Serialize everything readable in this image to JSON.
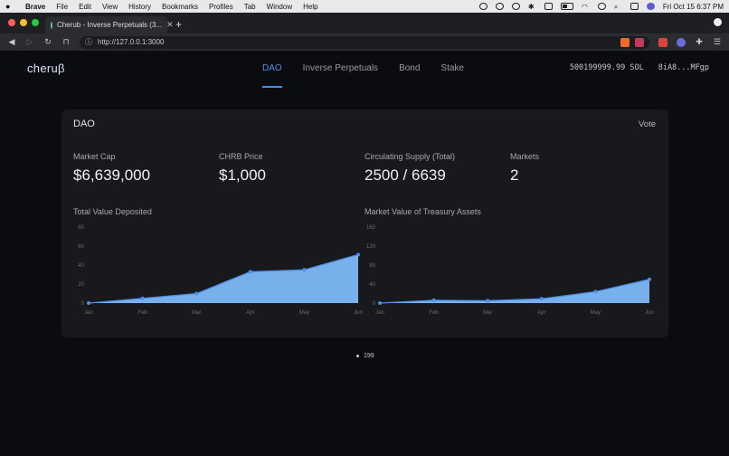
{
  "menubar": {
    "items": [
      "Brave",
      "File",
      "Edit",
      "View",
      "History",
      "Bookmarks",
      "Profiles",
      "Tab",
      "Window",
      "Help"
    ],
    "clock": "Fri Oct 15  6:37 PM"
  },
  "browser": {
    "tab_title": "Cherub - Inverse Perpetuals (3...",
    "url": "http://127.0.0.1:3000"
  },
  "header": {
    "logo": "cheruβ",
    "nav": [
      "DAO",
      "Inverse Perpetuals",
      "Bond",
      "Stake"
    ],
    "balance": "500199999.99 SOL",
    "address": "8iA8...MFgp"
  },
  "card": {
    "title": "DAO",
    "vote": "Vote",
    "stats": [
      {
        "label": "Market Cap",
        "value": "$6,639,000"
      },
      {
        "label": "CHRB Price",
        "value": "$1,000"
      },
      {
        "label": "Circulating Supply (Total)",
        "value": "2500 / 6639"
      },
      {
        "label": "Markets",
        "value": "2"
      }
    ]
  },
  "footer": {
    "block": "199"
  },
  "colors": {
    "accent": "#4e8fe6",
    "area": "#7cb8f7"
  },
  "chart_data": [
    {
      "type": "area",
      "title": "Total Value Deposited",
      "categories": [
        "Jan",
        "Feb",
        "Mar",
        "Apr",
        "May",
        "Jun"
      ],
      "values": [
        0,
        5,
        10,
        33,
        35,
        51
      ],
      "ylim": [
        0,
        80
      ],
      "yticks": [
        0,
        20,
        40,
        60,
        80
      ]
    },
    {
      "type": "area",
      "title": "Market Value of Treasury Assets",
      "categories": [
        "Jan",
        "Feb",
        "Mar",
        "Apr",
        "May",
        "Jun"
      ],
      "values": [
        0,
        6,
        5,
        9,
        24,
        50
      ],
      "ylim": [
        0,
        160
      ],
      "yticks": [
        0,
        40,
        80,
        120,
        160
      ]
    }
  ]
}
